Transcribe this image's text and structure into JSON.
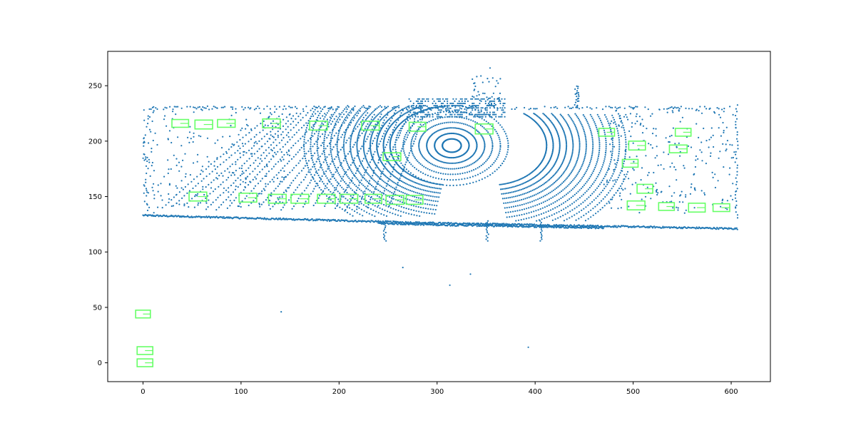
{
  "chart_data": {
    "type": "scatter",
    "title": "",
    "xlabel": "",
    "ylabel": "",
    "xlim": [
      -36,
      640
    ],
    "ylim": [
      -17,
      281
    ],
    "grid": false,
    "legend": "none",
    "xticks": [
      0,
      100,
      200,
      300,
      400,
      500,
      600
    ],
    "yticks": [
      0,
      50,
      100,
      150,
      200,
      250
    ],
    "colors": {
      "points": "#1f77b4",
      "boxes": "#66ff66",
      "axes": "#000000",
      "background": "#ffffff"
    },
    "series": [
      {
        "kind": "points",
        "structure": {
          "ground_line_left": {
            "x": [
              0,
              300
            ],
            "y": [
              133,
              126
            ]
          },
          "ground_line_right": {
            "x": [
              300,
              607
            ],
            "y": [
              126,
              121
            ]
          },
          "rings_center": [
            315,
            196
          ],
          "outer_band_y": [
            230,
            232
          ],
          "isolated_points": [
            [
              141,
              46
            ],
            [
              393,
              14
            ],
            [
              354,
              266
            ],
            [
              313,
              70
            ],
            [
              265,
              86
            ],
            [
              334,
              80
            ]
          ]
        }
      },
      {
        "kind": "boxes",
        "boxes": [
          {
            "cx": 38,
            "cy": 216,
            "w": 17,
            "h": 7
          },
          {
            "cx": 62,
            "cy": 215,
            "w": 18,
            "h": 8
          },
          {
            "cx": 85,
            "cy": 216,
            "w": 18,
            "h": 7
          },
          {
            "cx": 131,
            "cy": 216,
            "w": 18,
            "h": 8
          },
          {
            "cx": 179,
            "cy": 214,
            "w": 18,
            "h": 8
          },
          {
            "cx": 232,
            "cy": 214,
            "w": 18,
            "h": 8
          },
          {
            "cx": 280,
            "cy": 213,
            "w": 17,
            "h": 8
          },
          {
            "cx": 348,
            "cy": 211,
            "w": 18,
            "h": 9
          },
          {
            "cx": 473,
            "cy": 208,
            "w": 16,
            "h": 7
          },
          {
            "cx": 551,
            "cy": 208,
            "w": 16,
            "h": 7
          },
          {
            "cx": 504,
            "cy": 196,
            "w": 17,
            "h": 8
          },
          {
            "cx": 546,
            "cy": 193,
            "w": 18,
            "h": 7
          },
          {
            "cx": 254,
            "cy": 186,
            "w": 18,
            "h": 7
          },
          {
            "cx": 497,
            "cy": 180,
            "w": 16,
            "h": 7
          },
          {
            "cx": 512,
            "cy": 157,
            "w": 16,
            "h": 8
          },
          {
            "cx": 56,
            "cy": 150,
            "w": 18,
            "h": 8
          },
          {
            "cx": 107,
            "cy": 149,
            "w": 18,
            "h": 8
          },
          {
            "cx": 137,
            "cy": 148,
            "w": 18,
            "h": 8
          },
          {
            "cx": 160,
            "cy": 148,
            "w": 18,
            "h": 8
          },
          {
            "cx": 187,
            "cy": 148,
            "w": 18,
            "h": 8
          },
          {
            "cx": 210,
            "cy": 148,
            "w": 18,
            "h": 8
          },
          {
            "cx": 235,
            "cy": 148,
            "w": 17,
            "h": 8
          },
          {
            "cx": 257,
            "cy": 147,
            "w": 18,
            "h": 8
          },
          {
            "cx": 277,
            "cy": 147,
            "w": 17,
            "h": 8
          },
          {
            "cx": 503,
            "cy": 142,
            "w": 18,
            "h": 8
          },
          {
            "cx": 534,
            "cy": 141,
            "w": 16,
            "h": 7
          },
          {
            "cx": 565,
            "cy": 140,
            "w": 17,
            "h": 8
          },
          {
            "cx": 590,
            "cy": 140,
            "w": 17,
            "h": 7
          },
          {
            "cx": 0,
            "cy": 44,
            "w": 15,
            "h": 7
          },
          {
            "cx": 2,
            "cy": 11,
            "w": 16,
            "h": 7
          },
          {
            "cx": 2,
            "cy": 0,
            "w": 16,
            "h": 7
          }
        ]
      }
    ]
  }
}
